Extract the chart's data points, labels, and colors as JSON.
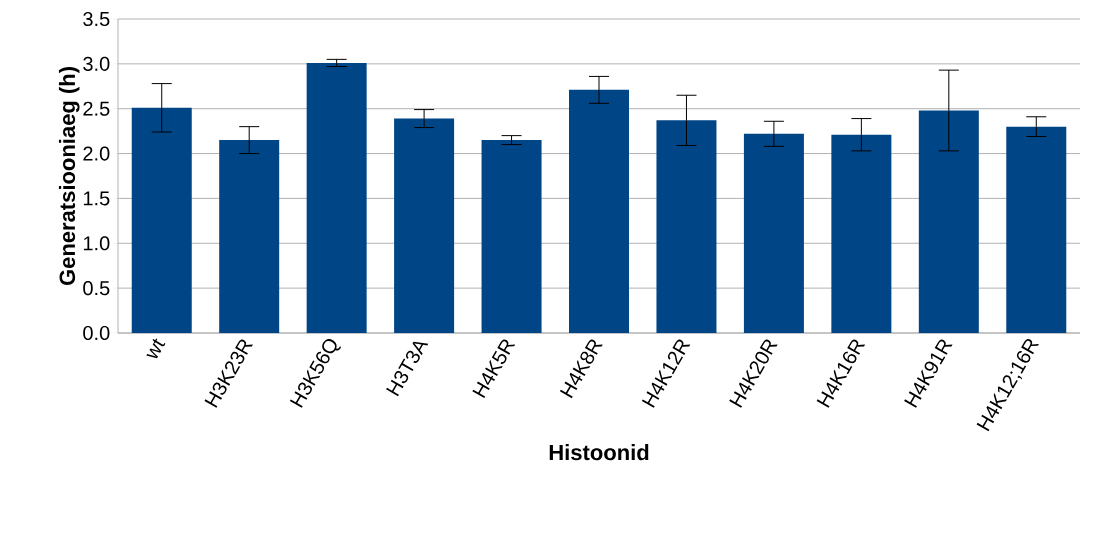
{
  "chart_data": {
    "type": "bar",
    "xlabel": "Histoonid",
    "ylabel": "Generatsiooniaeg (h)",
    "categories": [
      "wt",
      "H3K23R",
      "H3K56Q",
      "H3T3A",
      "H4K5R",
      "H4K8R",
      "H4K12R",
      "H4K20R",
      "H4K16R",
      "H4K91R",
      "H4K12;16R"
    ],
    "values": [
      2.51,
      2.15,
      3.01,
      2.39,
      2.15,
      2.71,
      2.37,
      2.22,
      2.21,
      2.48,
      2.3
    ],
    "errors": [
      0.27,
      0.15,
      0.04,
      0.1,
      0.05,
      0.15,
      0.28,
      0.14,
      0.18,
      0.45,
      0.11
    ],
    "color": "#004586",
    "ylim": [
      0,
      3.5
    ],
    "yticks": [
      {
        "value": 0,
        "label": "0.0"
      },
      {
        "value": 0.5,
        "label": "0.5"
      },
      {
        "value": 1,
        "label": "1.0"
      },
      {
        "value": 1.5,
        "label": "1.5"
      },
      {
        "value": 2,
        "label": "2.0"
      },
      {
        "value": 2.5,
        "label": "2.5"
      },
      {
        "value": 3,
        "label": "3.0"
      },
      {
        "value": 3.5,
        "label": "3.5"
      }
    ],
    "grid": "y"
  }
}
